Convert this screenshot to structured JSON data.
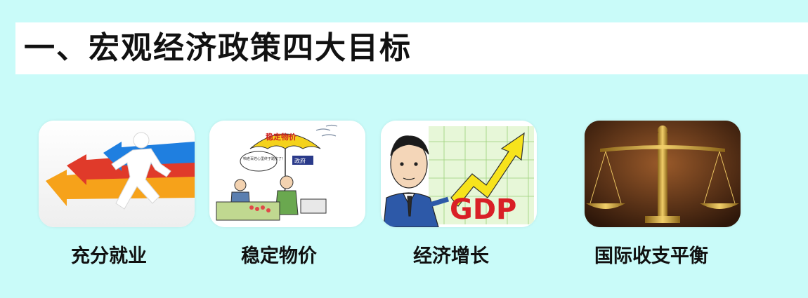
{
  "title": "一、宏观经济政策四大目标",
  "goals": [
    {
      "label": "充分就业",
      "icon": "running-man-arrows-icon"
    },
    {
      "label": "稳定物价",
      "icon": "umbrella-cartoon-icon",
      "umbrella_text": "稳定物价",
      "sign_text": "政府",
      "bubble_text": "咱老百姓心里终于踏实了！"
    },
    {
      "label": "经济增长",
      "icon": "gdp-growth-arrow-icon",
      "chart_text": "GDP"
    },
    {
      "label": "国际收支平衡",
      "icon": "balance-scale-icon"
    }
  ],
  "colors": {
    "background": "#c9fbf9",
    "title_bar": "#ffffff",
    "text": "#111111"
  }
}
